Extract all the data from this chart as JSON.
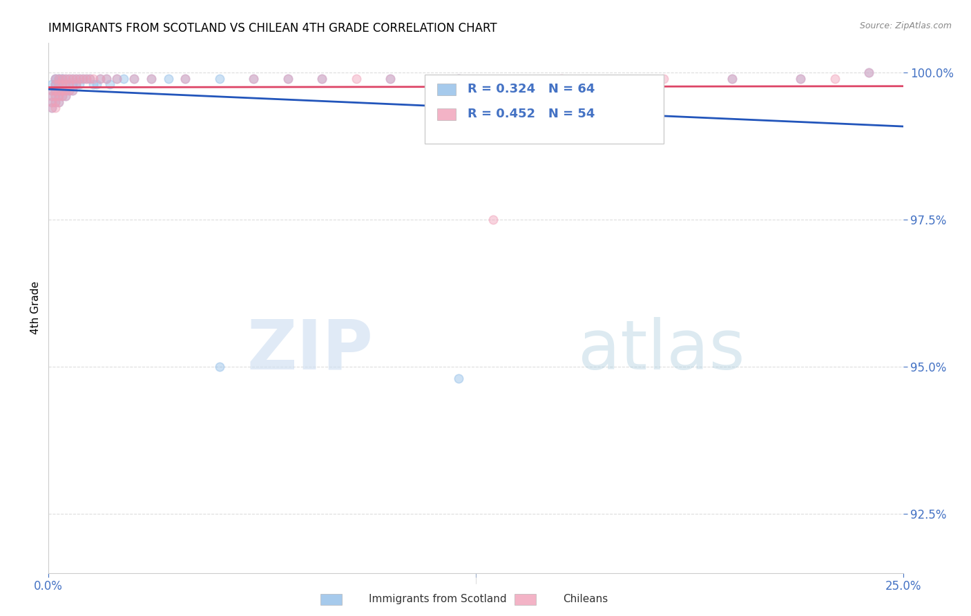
{
  "title": "IMMIGRANTS FROM SCOTLAND VS CHILEAN 4TH GRADE CORRELATION CHART",
  "source": "Source: ZipAtlas.com",
  "ylabel_label": "4th Grade",
  "legend_label1": "Immigrants from Scotland",
  "legend_label2": "Chileans",
  "R1": "0.324",
  "N1": "64",
  "R2": "0.452",
  "N2": "54",
  "color_scotland": "#90bde8",
  "color_chilean": "#f0a0b8",
  "color_line_scotland": "#2255bb",
  "color_line_chilean": "#dd4466",
  "color_text_blue": "#4472c4",
  "xmin": 0.0,
  "xmax": 0.25,
  "ymin": 0.915,
  "ymax": 1.005,
  "ytick_vals": [
    0.925,
    0.95,
    0.975,
    1.0
  ],
  "ytick_labels": [
    "92.5%",
    "95.0%",
    "97.5%",
    "100.0%"
  ],
  "scot_x": [
    0.001,
    0.001,
    0.001,
    0.001,
    0.001,
    0.002,
    0.002,
    0.002,
    0.002,
    0.002,
    0.002,
    0.002,
    0.002,
    0.003,
    0.003,
    0.003,
    0.003,
    0.003,
    0.003,
    0.003,
    0.004,
    0.004,
    0.004,
    0.004,
    0.004,
    0.005,
    0.005,
    0.005,
    0.005,
    0.006,
    0.006,
    0.006,
    0.007,
    0.007,
    0.007,
    0.008,
    0.008,
    0.009,
    0.009,
    0.01,
    0.011,
    0.012,
    0.013,
    0.014,
    0.015,
    0.017,
    0.018,
    0.02,
    0.022,
    0.025,
    0.03,
    0.035,
    0.04,
    0.05,
    0.06,
    0.07,
    0.08,
    0.1,
    0.12,
    0.05,
    0.12,
    0.24,
    0.22,
    0.2
  ],
  "scot_y": [
    0.998,
    0.997,
    0.996,
    0.995,
    0.994,
    0.999,
    0.999,
    0.998,
    0.998,
    0.997,
    0.997,
    0.996,
    0.995,
    0.999,
    0.999,
    0.998,
    0.998,
    0.997,
    0.996,
    0.995,
    0.999,
    0.999,
    0.998,
    0.997,
    0.996,
    0.999,
    0.998,
    0.997,
    0.996,
    0.999,
    0.998,
    0.997,
    0.999,
    0.998,
    0.997,
    0.999,
    0.998,
    0.999,
    0.998,
    0.999,
    0.999,
    0.999,
    0.998,
    0.998,
    0.999,
    0.999,
    0.998,
    0.999,
    0.999,
    0.999,
    0.999,
    0.999,
    0.999,
    0.999,
    0.999,
    0.999,
    0.999,
    0.999,
    0.999,
    0.95,
    0.948,
    1.0,
    0.999,
    0.999
  ],
  "chil_x": [
    0.001,
    0.001,
    0.001,
    0.001,
    0.002,
    0.002,
    0.002,
    0.002,
    0.002,
    0.002,
    0.003,
    0.003,
    0.003,
    0.003,
    0.003,
    0.004,
    0.004,
    0.004,
    0.004,
    0.005,
    0.005,
    0.005,
    0.005,
    0.006,
    0.006,
    0.006,
    0.007,
    0.007,
    0.008,
    0.008,
    0.009,
    0.01,
    0.011,
    0.012,
    0.013,
    0.015,
    0.017,
    0.02,
    0.025,
    0.03,
    0.04,
    0.06,
    0.08,
    0.1,
    0.12,
    0.15,
    0.18,
    0.2,
    0.22,
    0.23,
    0.24,
    0.13,
    0.09,
    0.07
  ],
  "chil_y": [
    0.997,
    0.996,
    0.995,
    0.994,
    0.999,
    0.998,
    0.997,
    0.996,
    0.995,
    0.994,
    0.999,
    0.998,
    0.997,
    0.996,
    0.995,
    0.999,
    0.998,
    0.997,
    0.996,
    0.999,
    0.998,
    0.997,
    0.996,
    0.999,
    0.998,
    0.997,
    0.999,
    0.997,
    0.999,
    0.998,
    0.999,
    0.999,
    0.999,
    0.999,
    0.999,
    0.999,
    0.999,
    0.999,
    0.999,
    0.999,
    0.999,
    0.999,
    0.999,
    0.999,
    0.999,
    0.999,
    0.999,
    0.999,
    0.999,
    0.999,
    1.0,
    0.975,
    0.999,
    0.999
  ]
}
